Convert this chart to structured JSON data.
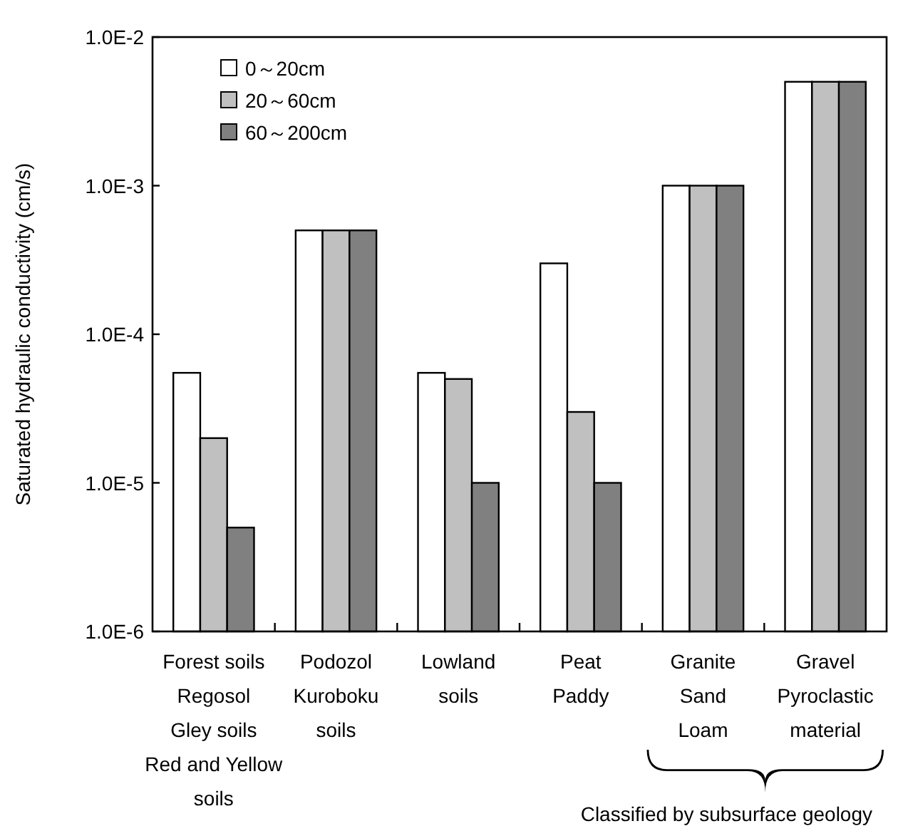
{
  "chart_data": {
    "type": "bar",
    "ylabel": "Saturated hydraulic conductivity (cm/s)",
    "categories": [
      "Forest soils\nRegosol\nGley soils\nRed and Yellow\nsoils",
      "Podozol\nKuroboku\nsoils",
      "Lowland\nsoils",
      "Peat\nPaddy",
      "Granite\nSand\nLoam",
      "Gravel\nPyroclastic\nmaterial"
    ],
    "series": [
      {
        "name": "0～20cm",
        "color": "#ffffff",
        "values": [
          5.5e-05,
          0.0005,
          5.5e-05,
          0.0003,
          0.001,
          0.005
        ]
      },
      {
        "name": "20～60cm",
        "color": "#c0c0c0",
        "values": [
          2e-05,
          0.0005,
          5e-05,
          3e-05,
          0.001,
          0.005
        ]
      },
      {
        "name": "60～200cm",
        "color": "#808080",
        "values": [
          5e-06,
          0.0005,
          1e-05,
          1e-05,
          0.001,
          0.005
        ]
      }
    ],
    "log": true,
    "ylim": [
      1e-06,
      0.01
    ],
    "yticks": [
      {
        "value": 1e-06,
        "label": "1.0E-6"
      },
      {
        "value": 1e-05,
        "label": "1.0E-5"
      },
      {
        "value": 0.0001,
        "label": "1.0E-4"
      },
      {
        "value": 0.001,
        "label": "1.0E-3"
      },
      {
        "value": 0.01,
        "label": "1.0E-2"
      }
    ],
    "grid": false,
    "legend": "top left",
    "annotations": [
      "Classified by subsurface geology"
    ]
  }
}
